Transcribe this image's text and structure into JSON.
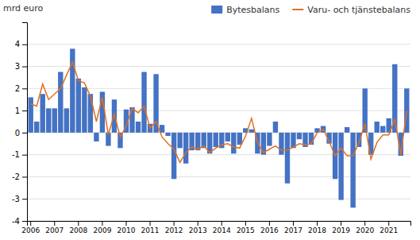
{
  "chart_data": {
    "type": "bar",
    "y_label": "mrd euro",
    "categories": [
      "2006",
      null,
      null,
      null,
      "2007",
      null,
      null,
      null,
      "2008",
      null,
      null,
      null,
      "2009",
      null,
      null,
      null,
      "2010",
      null,
      null,
      null,
      "2011",
      null,
      null,
      null,
      "2012",
      null,
      null,
      null,
      "2013",
      null,
      null,
      null,
      "2014",
      null,
      null,
      null,
      "2015",
      null,
      null,
      null,
      "2016",
      null,
      null,
      null,
      "2017",
      null,
      null,
      null,
      "2018",
      null,
      null,
      null,
      "2019",
      null,
      null,
      null,
      "2020",
      null,
      null,
      null,
      "2021",
      null,
      null,
      null
    ],
    "series": [
      {
        "name": "Bytesbalans",
        "type": "bar",
        "color": "#4472C4",
        "values": [
          1.6,
          0.5,
          1.75,
          1.1,
          1.1,
          2.75,
          1.1,
          3.8,
          2.45,
          2.05,
          1.75,
          -0.4,
          1.85,
          -0.6,
          1.5,
          -0.7,
          1.05,
          1.15,
          0.5,
          2.75,
          0.4,
          2.65,
          0.35,
          -0.15,
          -2.1,
          -0.7,
          -1.4,
          -0.8,
          -0.8,
          -0.7,
          -0.95,
          -0.65,
          -0.7,
          -0.4,
          -0.95,
          -0.55,
          0.2,
          0.15,
          -0.95,
          -1.0,
          -0.6,
          0.5,
          -1.0,
          -2.3,
          -0.7,
          -0.3,
          -0.65,
          -0.55,
          0.2,
          0.3,
          -0.5,
          -2.1,
          -3.05,
          0.25,
          -3.4,
          -0.65,
          2.0,
          -1.0,
          0.5,
          0.3,
          0.65,
          3.1,
          -1.05,
          2.0
        ]
      },
      {
        "name": "Varu- och tjänstebalans",
        "type": "line",
        "color": "#E07020",
        "values": [
          1.3,
          1.2,
          2.2,
          1.5,
          1.75,
          2.0,
          2.6,
          3.2,
          2.35,
          2.25,
          1.65,
          0.5,
          1.6,
          -0.1,
          0.85,
          -0.2,
          0.3,
          1.1,
          0.9,
          1.2,
          0.2,
          0.5,
          -0.2,
          -0.5,
          -0.75,
          -1.35,
          -0.9,
          -0.65,
          -0.75,
          -0.6,
          -0.9,
          -0.7,
          -0.55,
          -0.5,
          -0.65,
          -0.7,
          -0.15,
          0.65,
          -0.45,
          -0.9,
          -0.75,
          -0.6,
          -0.8,
          -0.8,
          -0.65,
          -0.5,
          -0.55,
          -0.5,
          0.0,
          0.15,
          -0.4,
          -1.05,
          -0.7,
          -1.05,
          -1.05,
          -0.45,
          0.4,
          -1.2,
          -0.45,
          -0.1,
          -0.1,
          0.6,
          -1.0,
          1.0
        ]
      }
    ],
    "ylim": [
      -4,
      5
    ],
    "yticks": [
      -4,
      -3,
      -2,
      -1,
      0,
      1,
      2,
      3,
      4
    ],
    "grid": true,
    "legend": "upper right"
  }
}
